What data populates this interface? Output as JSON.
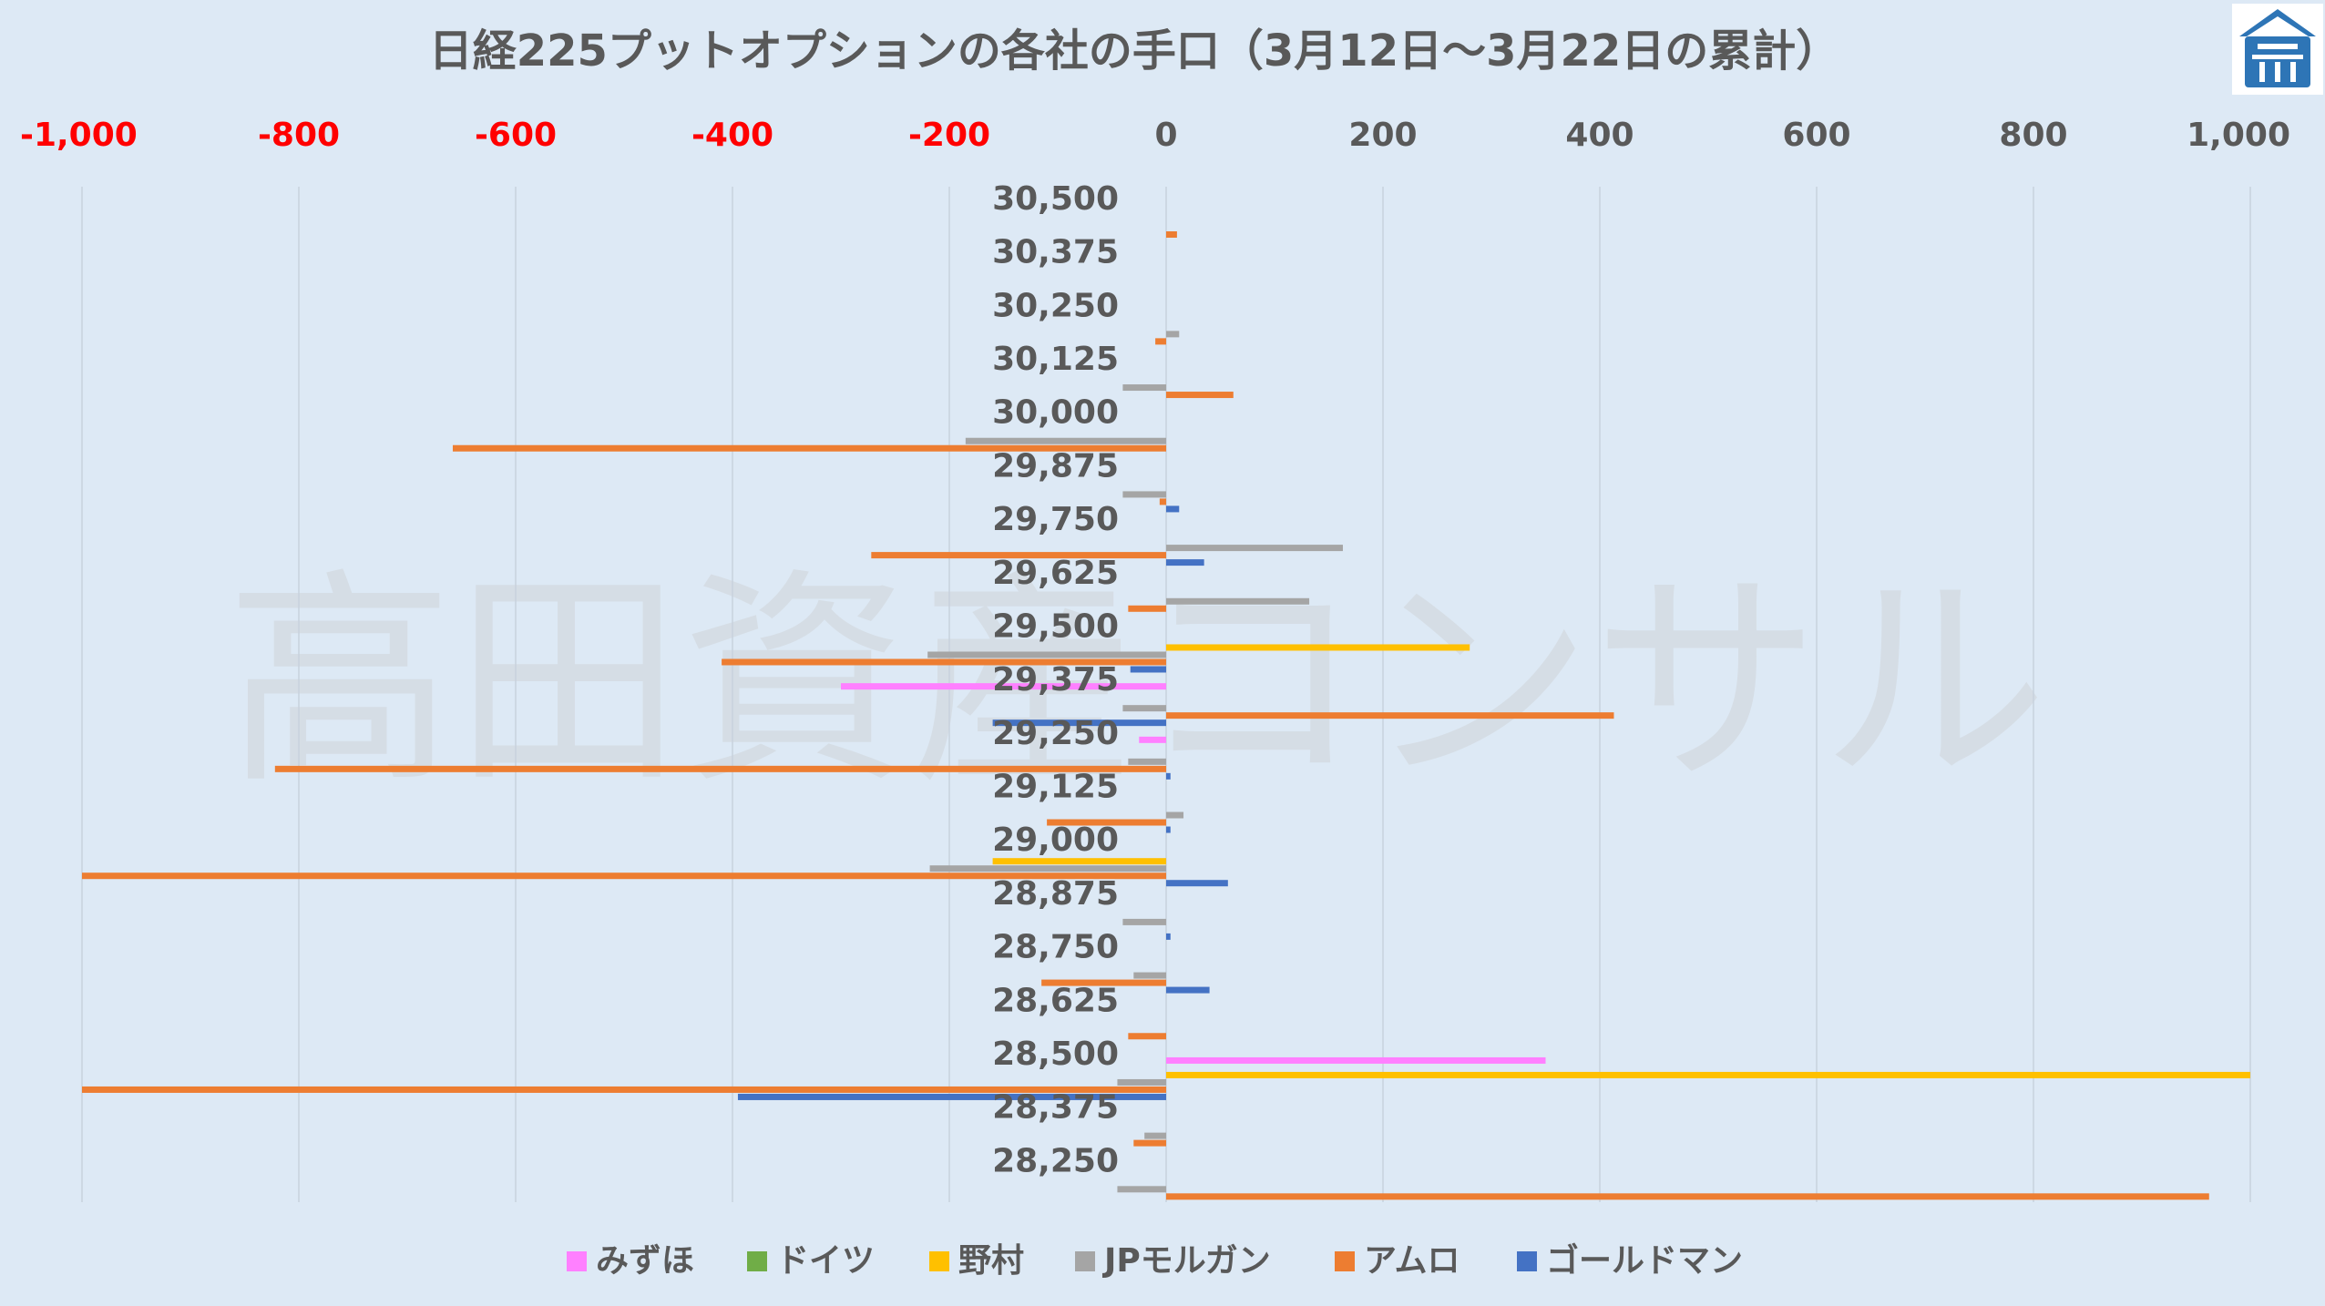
{
  "watermark": "高田資産コンサル",
  "chart_data": {
    "type": "bar",
    "orientation": "horizontal",
    "title": "日経225プットオプションの各社の手口（3月12日～3月22日の累計）",
    "xlim": [
      -1000,
      1000
    ],
    "xticks": [
      -1000,
      -800,
      -600,
      -400,
      -200,
      0,
      200,
      400,
      600,
      800,
      1000
    ],
    "xtick_labels": [
      "-1,000",
      "-800",
      "-600",
      "-400",
      "-200",
      "0",
      "200",
      "400",
      "600",
      "800",
      "1,000"
    ],
    "negative_tick_color": "#ff0000",
    "positive_tick_color": "#595959",
    "grid": true,
    "legend_position": "bottom",
    "categories": [
      "30,500",
      "30,375",
      "30,250",
      "30,125",
      "30,000",
      "29,875",
      "29,750",
      "29,625",
      "29,500",
      "29,375",
      "29,250",
      "29,125",
      "29,000",
      "28,875",
      "28,750",
      "28,625",
      "28,500",
      "28,375",
      "28,250"
    ],
    "series": [
      {
        "name": "みずほ",
        "color": "#ff80ff",
        "values": [
          0,
          0,
          0,
          0,
          0,
          0,
          0,
          0,
          0,
          -300,
          -25,
          0,
          0,
          0,
          0,
          0,
          350,
          0,
          0
        ]
      },
      {
        "name": "ドイツ",
        "color": "#70ad47",
        "values": [
          0,
          0,
          0,
          0,
          0,
          0,
          0,
          0,
          0,
          0,
          0,
          0,
          0,
          0,
          0,
          0,
          0,
          0,
          0
        ]
      },
      {
        "name": "野村",
        "color": "#ffc000",
        "values": [
          0,
          0,
          0,
          0,
          0,
          0,
          0,
          0,
          280,
          0,
          0,
          0,
          -160,
          0,
          0,
          0,
          1000,
          0,
          0
        ]
      },
      {
        "name": "JPモルガン",
        "color": "#a5a5a5",
        "values": [
          0,
          0,
          12,
          -40,
          -185,
          -40,
          163,
          132,
          -220,
          -40,
          -35,
          16,
          -218,
          -40,
          -30,
          0,
          -45,
          -20,
          -45
        ]
      },
      {
        "name": "アムロ",
        "color": "#ed7d31",
        "values": [
          10,
          0,
          -10,
          62,
          -658,
          -6,
          -272,
          -35,
          -410,
          413,
          -822,
          -110,
          -1000,
          0,
          -115,
          -35,
          -1000,
          -30,
          962
        ]
      },
      {
        "name": "ゴールドマン",
        "color": "#4472c4",
        "values": [
          0,
          0,
          0,
          0,
          0,
          12,
          35,
          0,
          -33,
          -160,
          4,
          4,
          57,
          4,
          40,
          0,
          -395,
          0,
          0
        ]
      }
    ]
  }
}
